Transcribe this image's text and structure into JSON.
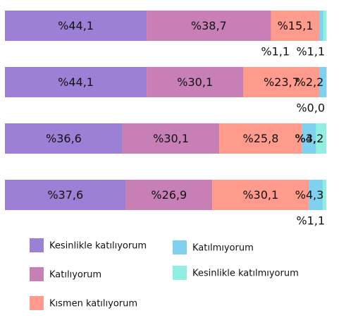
{
  "chart_data": {
    "type": "stacked-bar-horizontal",
    "categories": [
      null,
      null,
      null,
      null
    ],
    "xlim": [
      0,
      100
    ],
    "series": [
      {
        "name": "Kesinlikle katılıyorum",
        "color": "#9b80d6",
        "values": [
          44.1,
          44.1,
          36.6,
          37.6
        ],
        "value_labels": [
          "%44,1",
          "%44,1",
          "%36,6",
          "%37,6"
        ]
      },
      {
        "name": "Katılıyorum",
        "color": "#c77fb5",
        "values": [
          38.7,
          30.1,
          30.1,
          26.9
        ],
        "value_labels": [
          "%38,7",
          "%30,1",
          "%30,1",
          "%26,9"
        ]
      },
      {
        "name": "Kısmen katılıyorum",
        "color": "#ff9b8d",
        "values": [
          15.1,
          23.7,
          25.8,
          30.1
        ],
        "value_labels": [
          "%15,1",
          "%23,7",
          "%25,8",
          "%30,1"
        ]
      },
      {
        "name": "Katılmıyorum",
        "color": "#80d1f0",
        "values": [
          1.1,
          2.2,
          4.3,
          4.3
        ],
        "value_labels": [
          "%1,1",
          "%2,2",
          "%4,3",
          "%4,3"
        ]
      },
      {
        "name": "Kesinlikle katılmıyorum",
        "color": "#90efe2",
        "values": [
          1.1,
          0.0,
          3.2,
          1.1
        ],
        "value_labels": [
          "%1,1",
          "%0,0",
          "%3,2",
          "%1,1"
        ]
      }
    ],
    "legend": "bottom"
  }
}
